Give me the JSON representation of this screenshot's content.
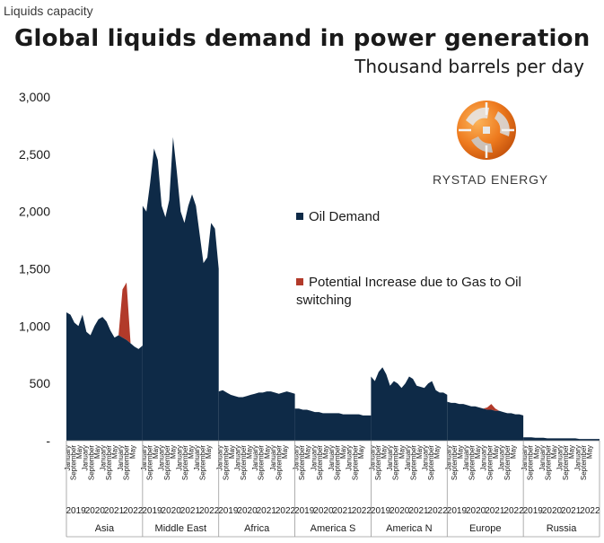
{
  "header": {
    "top_label": "Liquids capacity",
    "title": "Global liquids demand in power generation",
    "subtitle": "Thousand barrels per day"
  },
  "logo": {
    "name": "RYSTAD ENERGY",
    "icon": "rystad-energy-logo"
  },
  "colors": {
    "oil": "#0e2a47",
    "gas_switch": "#b23a2a",
    "text": "#1a1a1a"
  },
  "chart_data": {
    "type": "area",
    "title": "Global liquids demand in power generation",
    "ylabel": "Thousand barrels per day",
    "ylim": [
      0,
      3000
    ],
    "yticks": [
      "3,000",
      "2,500",
      "2,000",
      "1,500",
      "1,000",
      "500",
      "-"
    ],
    "grid": false,
    "legend_position": "right",
    "month_labels": [
      "January",
      "September",
      "May",
      "January",
      "September",
      "May",
      "January",
      "September",
      "May",
      "January",
      "September",
      "May"
    ],
    "year_labels": [
      "2019",
      "2020",
      "2021",
      "2022"
    ],
    "series": [
      {
        "name": "Oil Demand",
        "color": "#0e2a47"
      },
      {
        "name": "Potential Increase due to Gas to Oil switching",
        "color": "#b23a2a"
      }
    ],
    "regions": [
      {
        "name": "Asia",
        "oil": [
          1120,
          1100,
          1030,
          1000,
          1100,
          950,
          920,
          1000,
          1060,
          1080,
          1040,
          960,
          900,
          920,
          900,
          880,
          850,
          820,
          800,
          830
        ],
        "gas_switch": [
          0,
          0,
          0,
          0,
          0,
          0,
          0,
          0,
          0,
          0,
          0,
          0,
          0,
          0,
          420,
          500,
          0,
          0,
          0,
          0
        ]
      },
      {
        "name": "Middle East",
        "oil": [
          2050,
          2000,
          2250,
          2550,
          2450,
          2050,
          1950,
          2100,
          2650,
          2350,
          2000,
          1900,
          2050,
          2150,
          2050,
          1800,
          1550,
          1600,
          1900,
          1850,
          1500
        ],
        "gas_switch": []
      },
      {
        "name": "Africa",
        "oil": [
          430,
          440,
          420,
          400,
          390,
          380,
          380,
          390,
          400,
          410,
          420,
          420,
          430,
          430,
          420,
          410,
          420,
          430,
          420,
          410
        ],
        "gas_switch": []
      },
      {
        "name": "America S",
        "oil": [
          280,
          280,
          270,
          270,
          260,
          250,
          250,
          240,
          240,
          240,
          240,
          240,
          230,
          230,
          230,
          230,
          230,
          220,
          220,
          220
        ],
        "gas_switch": []
      },
      {
        "name": "America N",
        "oil": [
          560,
          520,
          600,
          640,
          580,
          480,
          520,
          500,
          460,
          500,
          560,
          540,
          480,
          470,
          460,
          500,
          520,
          440,
          420,
          420,
          400
        ],
        "gas_switch": []
      },
      {
        "name": "Europe",
        "oil": [
          340,
          330,
          330,
          320,
          320,
          310,
          300,
          300,
          290,
          280,
          270,
          270,
          260,
          260,
          250,
          240,
          240,
          230,
          230,
          220
        ],
        "gas_switch": [
          0,
          0,
          0,
          0,
          0,
          0,
          0,
          0,
          0,
          0,
          20,
          50,
          20,
          0,
          0,
          0,
          0,
          0,
          0,
          0
        ]
      },
      {
        "name": "Russia",
        "oil": [
          30,
          30,
          30,
          25,
          25,
          25,
          20,
          20,
          20,
          20,
          20,
          20,
          20,
          20,
          15,
          15,
          15,
          15,
          15,
          15
        ],
        "gas_switch": []
      }
    ]
  }
}
